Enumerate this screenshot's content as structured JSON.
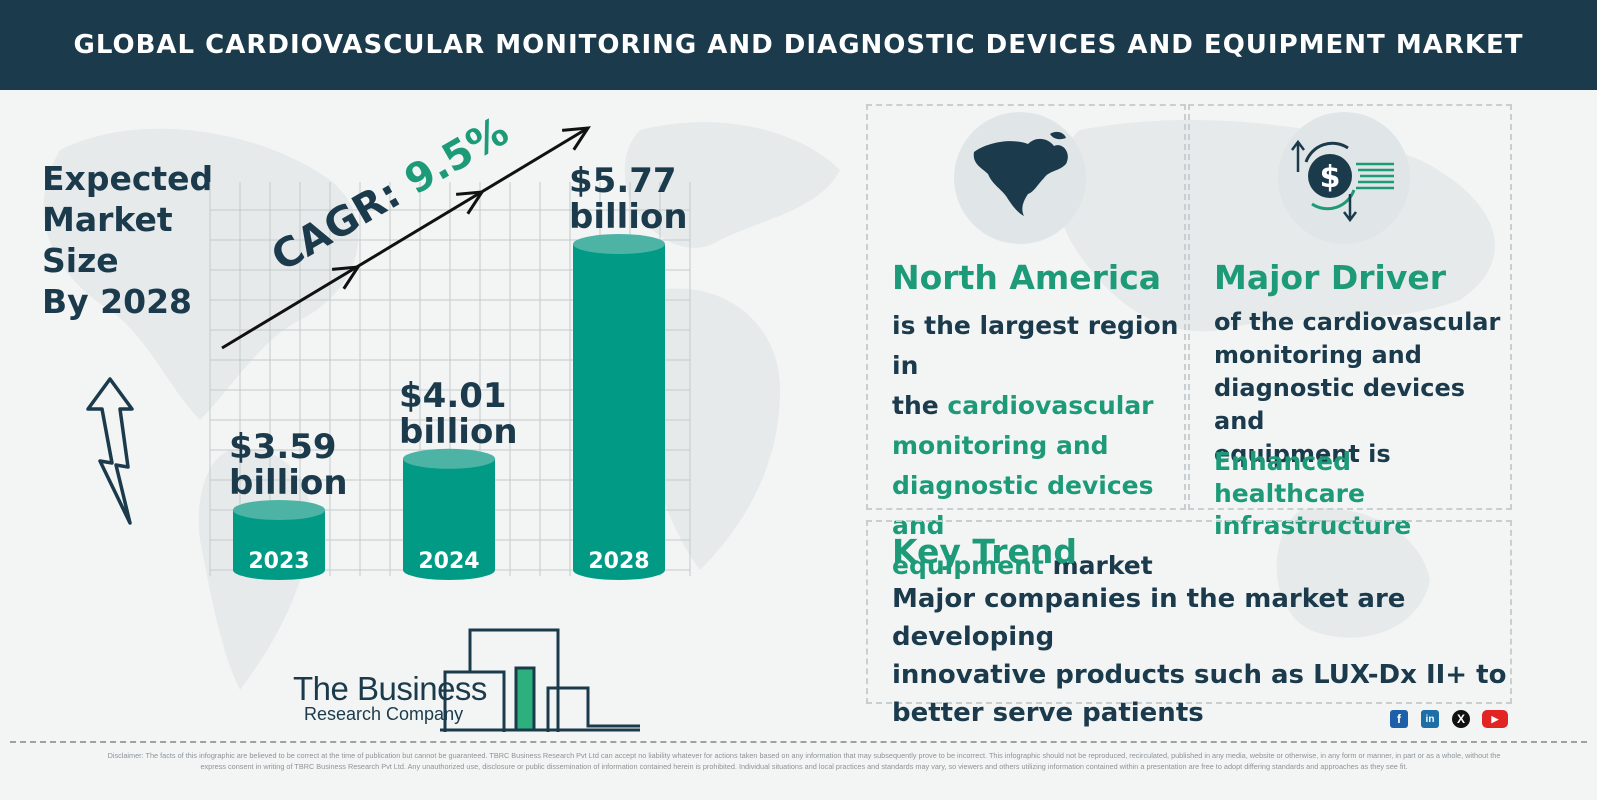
{
  "header": {
    "title": "GLOBAL CARDIOVASCULAR MONITORING AND DIAGNOSTIC DEVICES AND EQUIPMENT MARKET"
  },
  "expected_size": {
    "lines": [
      "Expected",
      "Market",
      "Size",
      "By 2028"
    ]
  },
  "chart_data": {
    "type": "bar",
    "categories": [
      "2023",
      "2024",
      "2028"
    ],
    "values": [
      3.59,
      4.01,
      5.77
    ],
    "value_labels": [
      "$3.59",
      "$4.01",
      "$5.77"
    ],
    "unit_label": "billion",
    "cagr_prefix": "CAGR: ",
    "cagr_value": "9.5%",
    "title": "",
    "xlabel": "",
    "ylabel": "",
    "grid": true,
    "colors": {
      "bar": "#009a85",
      "bar_top": "#4db3a4",
      "grid": "#c4c9ca",
      "label": "#1b3a4b",
      "cagr_value": "#1d9a78"
    }
  },
  "north_america": {
    "icon": "north-america-map-icon",
    "title": "North America",
    "line1": "is the largest region in",
    "line2_a": "the ",
    "line2_b": "cardiovascular",
    "line3": "monitoring and",
    "line4": "diagnostic devices and",
    "line5_a": "equipment",
    "line5_b": " market"
  },
  "major_driver": {
    "icon": "dollar-exchange-icon",
    "title": "Major Driver",
    "lines": [
      "of the cardiovascular",
      "monitoring and",
      "diagnostic devices and",
      "equipment is"
    ],
    "highlight": [
      "Enhanced healthcare",
      "infrastructure"
    ]
  },
  "key_trend": {
    "title": "Key Trend",
    "lines": [
      "Major companies in the market are developing",
      "innovative products such as LUX-Dx II+ to",
      "better serve patients"
    ]
  },
  "logo": {
    "line1": "The Business",
    "line2": "Research Company"
  },
  "social": {
    "facebook": "f",
    "linkedin": "in",
    "x": "X",
    "youtube": "▶"
  },
  "disclaimer": "Disclaimer: The facts of this infographic are believed to be correct at the time of publication but cannot be guaranteed. TBRC Business Research Pvt Ltd can accept no liability whatever for actions taken based on any information that may subsequently prove to be incorrect. This infographic should not be reproduced, recirculated, published in any media, website or otherwise, in any form or manner, in part or as a whole, without the express consent in writing of TBRC Business Research Pvt Ltd. Any unauthorized use, disclosure or public dissemination of information contained herein is prohibited. Individual situations and local practices and standards may vary, so viewers and others utilizing information contained within a presentation are free to adopt differing standards and approaches as they see fit.",
  "colors": {
    "navy": "#1b3a4b",
    "green": "#1d9a78",
    "teal": "#009a85"
  }
}
